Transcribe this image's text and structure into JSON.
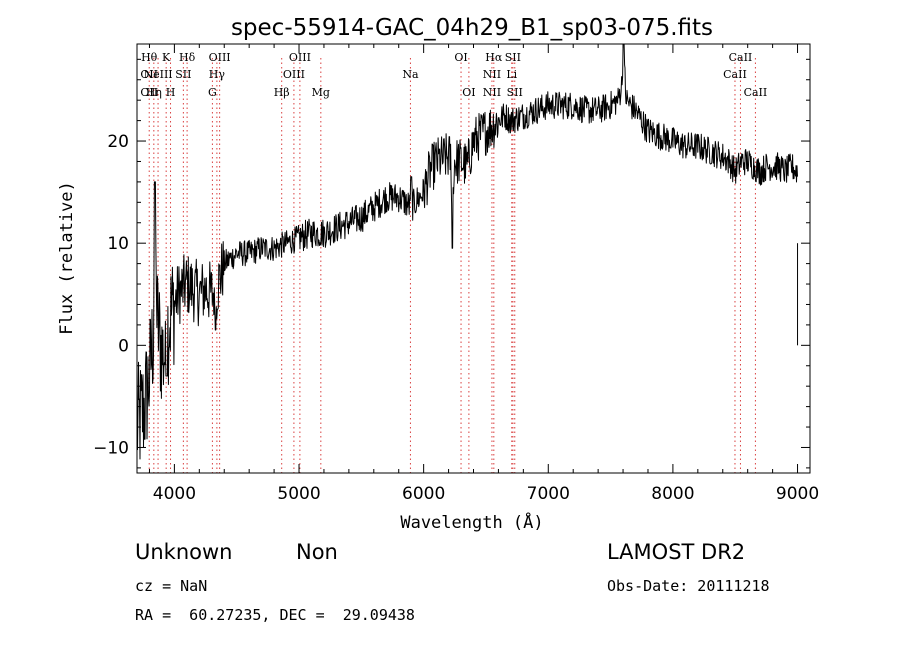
{
  "chart_data": {
    "type": "line",
    "title": "spec-55914-GAC_04h29_B1_sp03-075.fits",
    "xlabel": "Wavelength (Å)",
    "ylabel": "Flux (relative)",
    "xlim": [
      3700,
      9100
    ],
    "ylim": [
      -12.5,
      29.5
    ],
    "xticks": [
      {
        "value": 4000,
        "label": "4000"
      },
      {
        "value": 5000,
        "label": "5000"
      },
      {
        "value": 6000,
        "label": "6000"
      },
      {
        "value": 7000,
        "label": "7000"
      },
      {
        "value": 8000,
        "label": "8000"
      },
      {
        "value": 9000,
        "label": "9000"
      }
    ],
    "yticks": [
      {
        "value": -10,
        "label": "−10"
      },
      {
        "value": 0,
        "label": "0"
      },
      {
        "value": 10,
        "label": "10"
      },
      {
        "value": 20,
        "label": "20"
      }
    ],
    "grid": false,
    "series_color": "#000000",
    "line_marker_color": "#d94040",
    "spectrum": {
      "x": [
        3700,
        3760,
        3800,
        3830,
        3850,
        3870,
        3890,
        3910,
        3930,
        3950,
        3970,
        4000,
        4030,
        4060,
        4100,
        4150,
        4200,
        4250,
        4300,
        4350,
        4400,
        4450,
        4500,
        4600,
        4700,
        4800,
        4900,
        5000,
        5100,
        5200,
        5300,
        5400,
        5500,
        5600,
        5700,
        5800,
        5900,
        6000,
        6050,
        6100,
        6200,
        6250,
        6300,
        6350,
        6400,
        6450,
        6500,
        6550,
        6600,
        6650,
        6700,
        6800,
        6900,
        7000,
        7100,
        7200,
        7300,
        7400,
        7500,
        7560,
        7600,
        7630,
        7660,
        7700,
        7750,
        7800,
        7900,
        8000,
        8100,
        8200,
        8300,
        8400,
        8450,
        8500,
        8550,
        8600,
        8650,
        8700,
        8750,
        8800,
        8850,
        8900,
        8950,
        9000
      ],
      "y": [
        -8,
        -6,
        -3,
        1,
        3,
        2,
        0,
        -1,
        0,
        2,
        3,
        4,
        5,
        5.5,
        6,
        5.5,
        5,
        5.5,
        5,
        6,
        8,
        8.5,
        9,
        9,
        9.5,
        9.5,
        10,
        10.5,
        11,
        11,
        11.5,
        12,
        12.5,
        13.5,
        14.5,
        14.5,
        13.5,
        15,
        17,
        18,
        18.5,
        18,
        18,
        17.5,
        20,
        20.5,
        21,
        21.5,
        22,
        22.5,
        22,
        22.5,
        23,
        23.5,
        23.5,
        23.5,
        23,
        23,
        23.5,
        24,
        26,
        24,
        23.5,
        23,
        22,
        21,
        20.5,
        20,
        19.5,
        19.5,
        19,
        18.5,
        18,
        17,
        18,
        18,
        17.5,
        17,
        17.5,
        17.5,
        17.5,
        17,
        17.5,
        17
      ]
    },
    "spikes": [
      {
        "x": 7605,
        "y": 29.5
      },
      {
        "x": 6230,
        "y": 9.5
      },
      {
        "x": 3845,
        "y": 16
      },
      {
        "x": 3935,
        "y": -3
      },
      {
        "x": 4330,
        "y": 1.5
      },
      {
        "x": 5900,
        "y": 16.5
      }
    ],
    "emission_lines": [
      {
        "x": 3798,
        "rows": [
          {
            "label": "Hθ",
            "row": 0
          },
          {
            "label": "OII",
            "row": 1
          },
          {
            "label": "OII",
            "row": 2
          }
        ]
      },
      {
        "x": 3835,
        "rows": [
          {
            "label": "Hη",
            "row": 2
          }
        ]
      },
      {
        "x": 3869,
        "rows": [
          {
            "label": "NeIII",
            "row": 1
          }
        ]
      },
      {
        "x": 3934,
        "rows": [
          {
            "label": "K",
            "row": 0
          }
        ]
      },
      {
        "x": 3969,
        "rows": [
          {
            "label": "H",
            "row": 2
          }
        ]
      },
      {
        "x": 4072,
        "rows": [
          {
            "label": "SII",
            "row": 1
          }
        ]
      },
      {
        "x": 4102,
        "rows": [
          {
            "label": "Hδ",
            "row": 0
          }
        ]
      },
      {
        "x": 4305,
        "rows": [
          {
            "label": "G",
            "row": 2
          }
        ]
      },
      {
        "x": 4341,
        "rows": [
          {
            "label": "Hγ",
            "row": 1
          }
        ]
      },
      {
        "x": 4363,
        "rows": [
          {
            "label": "OIII",
            "row": 0
          }
        ]
      },
      {
        "x": 4861,
        "rows": [
          {
            "label": "Hβ",
            "row": 2
          }
        ]
      },
      {
        "x": 4959,
        "rows": [
          {
            "label": "OIII",
            "row": 1
          }
        ]
      },
      {
        "x": 5007,
        "rows": [
          {
            "label": "OIII",
            "row": 0
          }
        ]
      },
      {
        "x": 5175,
        "rows": [
          {
            "label": "Mg",
            "row": 2
          }
        ]
      },
      {
        "x": 5894,
        "rows": [
          {
            "label": "Na",
            "row": 1
          }
        ]
      },
      {
        "x": 6300,
        "rows": [
          {
            "label": "OI",
            "row": 0
          }
        ]
      },
      {
        "x": 6363,
        "rows": [
          {
            "label": "OI",
            "row": 2
          }
        ]
      },
      {
        "x": 6548,
        "rows": [
          {
            "label": "NII",
            "row": 1
          },
          {
            "label": "NII",
            "row": 2
          }
        ]
      },
      {
        "x": 6563,
        "rows": [
          {
            "label": "Hα",
            "row": 0
          }
        ]
      },
      {
        "x": 6707,
        "rows": [
          {
            "label": "Li",
            "row": 1
          }
        ]
      },
      {
        "x": 6716,
        "rows": [
          {
            "label": "SII",
            "row": 0
          }
        ]
      },
      {
        "x": 6731,
        "rows": [
          {
            "label": "SII",
            "row": 2
          }
        ]
      },
      {
        "x": 8498,
        "rows": [
          {
            "label": "CaII",
            "row": 1
          }
        ]
      },
      {
        "x": 8542,
        "rows": [
          {
            "label": "CaII",
            "row": 0
          }
        ]
      },
      {
        "x": 8662,
        "rows": [
          {
            "label": "CaII",
            "row": 2
          }
        ]
      }
    ]
  },
  "info": {
    "classification": "Unknown",
    "subclass": "Non",
    "survey": "LAMOST DR2",
    "cz": "cz = NaN",
    "obs_date": "Obs-Date: 20111218",
    "coords": "RA =  60.27235, DEC =  29.09438"
  }
}
